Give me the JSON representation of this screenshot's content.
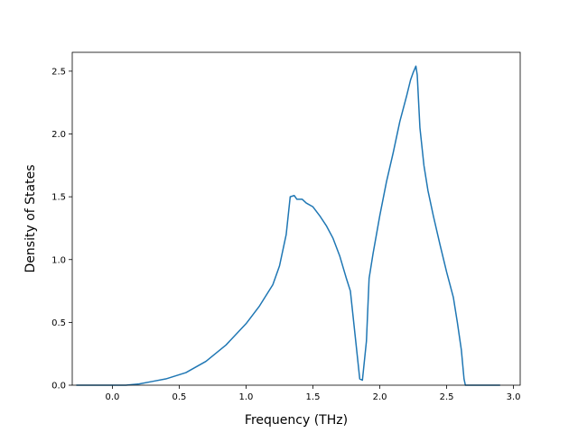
{
  "chart_data": {
    "type": "line",
    "title": "",
    "xlabel": "Frequency (THz)",
    "ylabel": "Density of States",
    "xlim": [
      -0.3,
      3.05
    ],
    "ylim": [
      0.0,
      2.65
    ],
    "xticks": [
      0.0,
      0.5,
      1.0,
      1.5,
      2.0,
      2.5,
      3.0
    ],
    "xtick_labels": [
      "0.0",
      "0.5",
      "1.0",
      "1.5",
      "2.0",
      "2.5",
      "3.0"
    ],
    "yticks": [
      0.0,
      0.5,
      1.0,
      1.5,
      2.0,
      2.5
    ],
    "ytick_labels": [
      "0.0",
      "0.5",
      "1.0",
      "1.5",
      "2.0",
      "2.5"
    ],
    "grid": false,
    "legend": "none",
    "line_color": "#1f77b4",
    "series": [
      {
        "x": [
          -0.27,
          0.0,
          0.1,
          0.2,
          0.3,
          0.4,
          0.55,
          0.7,
          0.85,
          1.0,
          1.1,
          1.2,
          1.25,
          1.3,
          1.33,
          1.36,
          1.38,
          1.42,
          1.45,
          1.5,
          1.55,
          1.6,
          1.65,
          1.7,
          1.75,
          1.78,
          1.82,
          1.85,
          1.87,
          1.9,
          1.92,
          1.95,
          2.0,
          2.05,
          2.1,
          2.15,
          2.2,
          2.23,
          2.25,
          2.27,
          2.28,
          2.3,
          2.33,
          2.36,
          2.4,
          2.45,
          2.5,
          2.55,
          2.58,
          2.61,
          2.63,
          2.64,
          2.7,
          2.9
        ],
        "y": [
          0.0,
          0.0,
          0.0,
          0.01,
          0.03,
          0.05,
          0.1,
          0.19,
          0.32,
          0.49,
          0.63,
          0.8,
          0.95,
          1.2,
          1.5,
          1.51,
          1.48,
          1.48,
          1.45,
          1.42,
          1.35,
          1.27,
          1.17,
          1.03,
          0.85,
          0.75,
          0.35,
          0.05,
          0.04,
          0.35,
          0.85,
          1.05,
          1.35,
          1.62,
          1.85,
          2.1,
          2.3,
          2.43,
          2.49,
          2.54,
          2.47,
          2.05,
          1.75,
          1.55,
          1.35,
          1.12,
          0.9,
          0.7,
          0.5,
          0.28,
          0.05,
          0.0,
          0.0,
          0.0
        ]
      }
    ]
  }
}
